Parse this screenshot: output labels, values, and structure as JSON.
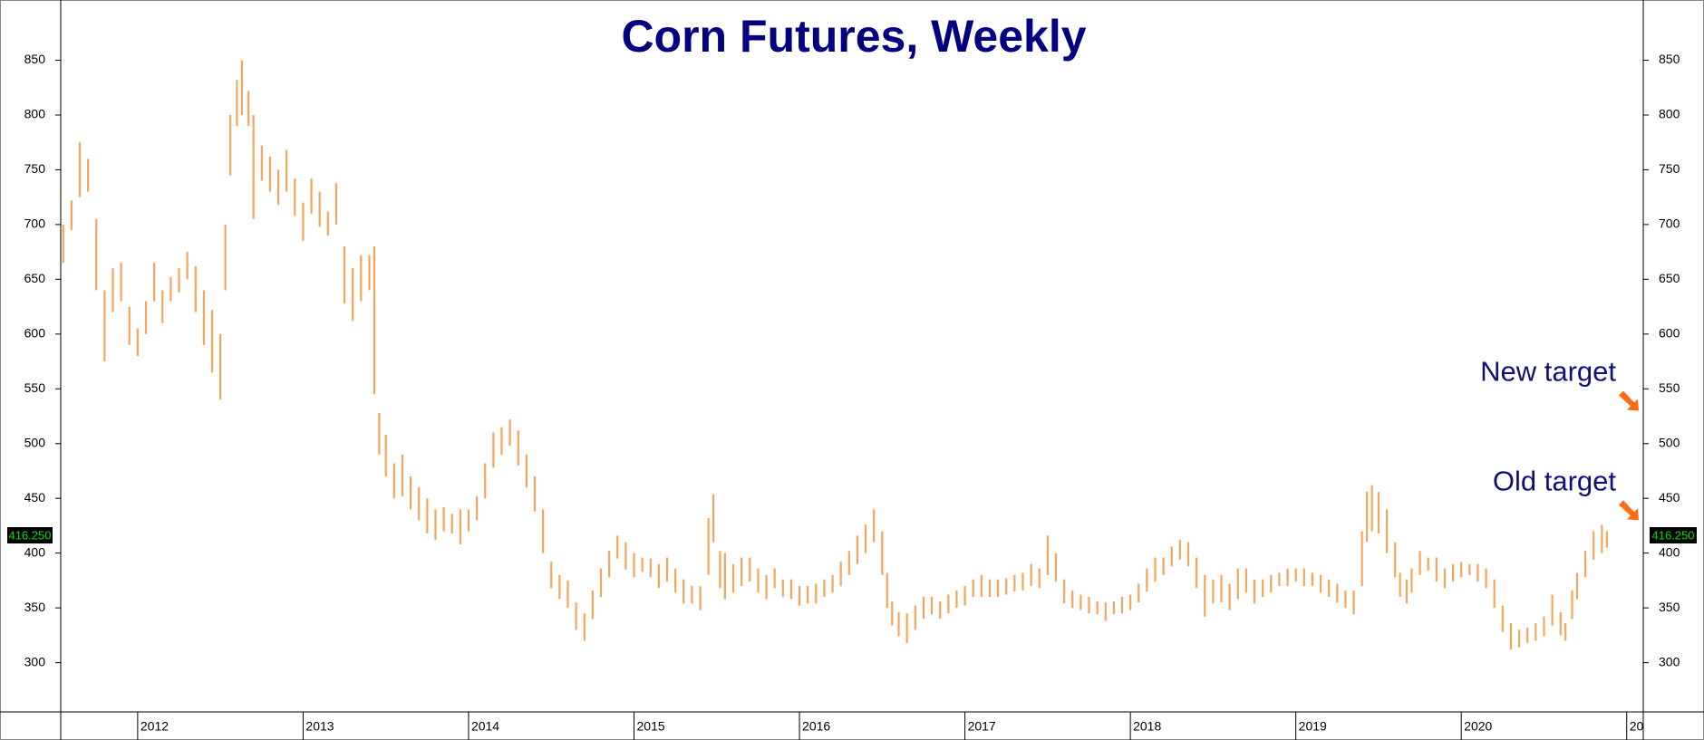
{
  "chart_data": {
    "type": "range-bar",
    "title": "Corn Futures, Weekly",
    "color": "#f5a55a",
    "xlim": [
      2011.535,
      2021.1
    ],
    "ylim": [
      255,
      905
    ],
    "xticks": [
      2012,
      2013,
      2014,
      2015,
      2016,
      2017,
      2018,
      2019,
      2020,
      {
        "value": 2021,
        "label": "20"
      }
    ],
    "yticks": [
      300,
      350,
      400,
      450,
      500,
      550,
      600,
      650,
      700,
      750,
      800,
      850
    ],
    "last_price": {
      "value": 416.25,
      "label": "416.250"
    },
    "annotations": [
      {
        "text": "New target",
        "value": 530
      },
      {
        "text": "Old target",
        "value": 430
      }
    ],
    "bars": [
      [
        2011.55,
        665,
        700
      ],
      [
        2011.6,
        695,
        722
      ],
      [
        2011.65,
        725,
        775
      ],
      [
        2011.7,
        730,
        760
      ],
      [
        2011.75,
        640,
        705
      ],
      [
        2011.8,
        575,
        640
      ],
      [
        2011.85,
        620,
        660
      ],
      [
        2011.9,
        630,
        665
      ],
      [
        2011.95,
        590,
        625
      ],
      [
        2012.0,
        580,
        605
      ],
      [
        2012.05,
        600,
        630
      ],
      [
        2012.1,
        630,
        665
      ],
      [
        2012.15,
        610,
        640
      ],
      [
        2012.2,
        630,
        652
      ],
      [
        2012.25,
        638,
        660
      ],
      [
        2012.3,
        650,
        675
      ],
      [
        2012.35,
        620,
        662
      ],
      [
        2012.4,
        590,
        640
      ],
      [
        2012.45,
        565,
        622
      ],
      [
        2012.5,
        540,
        600
      ],
      [
        2012.53,
        640,
        700
      ],
      [
        2012.56,
        745,
        800
      ],
      [
        2012.6,
        790,
        832
      ],
      [
        2012.63,
        800,
        850
      ],
      [
        2012.67,
        790,
        822
      ],
      [
        2012.7,
        705,
        800
      ],
      [
        2012.75,
        740,
        772
      ],
      [
        2012.8,
        730,
        762
      ],
      [
        2012.85,
        718,
        750
      ],
      [
        2012.9,
        730,
        768
      ],
      [
        2012.95,
        708,
        742
      ],
      [
        2013.0,
        685,
        720
      ],
      [
        2013.05,
        710,
        742
      ],
      [
        2013.1,
        698,
        730
      ],
      [
        2013.15,
        690,
        712
      ],
      [
        2013.2,
        700,
        738
      ],
      [
        2013.25,
        628,
        680
      ],
      [
        2013.3,
        612,
        660
      ],
      [
        2013.35,
        630,
        672
      ],
      [
        2013.4,
        640,
        672
      ],
      [
        2013.43,
        545,
        680
      ],
      [
        2013.46,
        490,
        528
      ],
      [
        2013.5,
        470,
        508
      ],
      [
        2013.55,
        450,
        482
      ],
      [
        2013.6,
        452,
        490
      ],
      [
        2013.65,
        440,
        470
      ],
      [
        2013.7,
        430,
        460
      ],
      [
        2013.75,
        418,
        450
      ],
      [
        2013.8,
        412,
        440
      ],
      [
        2013.85,
        420,
        442
      ],
      [
        2013.9,
        418,
        436
      ],
      [
        2013.95,
        408,
        440
      ],
      [
        2014.0,
        420,
        440
      ],
      [
        2014.05,
        430,
        452
      ],
      [
        2014.1,
        450,
        482
      ],
      [
        2014.15,
        478,
        510
      ],
      [
        2014.2,
        490,
        515
      ],
      [
        2014.25,
        498,
        522
      ],
      [
        2014.3,
        480,
        512
      ],
      [
        2014.35,
        460,
        490
      ],
      [
        2014.4,
        438,
        470
      ],
      [
        2014.45,
        400,
        440
      ],
      [
        2014.5,
        368,
        392
      ],
      [
        2014.55,
        358,
        380
      ],
      [
        2014.6,
        350,
        375
      ],
      [
        2014.65,
        330,
        355
      ],
      [
        2014.7,
        320,
        345
      ],
      [
        2014.75,
        340,
        366
      ],
      [
        2014.8,
        360,
        386
      ],
      [
        2014.85,
        378,
        402
      ],
      [
        2014.9,
        395,
        416
      ],
      [
        2014.95,
        385,
        410
      ],
      [
        2015.0,
        378,
        400
      ],
      [
        2015.05,
        383,
        396
      ],
      [
        2015.1,
        378,
        395
      ],
      [
        2015.15,
        368,
        390
      ],
      [
        2015.2,
        374,
        396
      ],
      [
        2015.25,
        364,
        386
      ],
      [
        2015.3,
        354,
        376
      ],
      [
        2015.35,
        354,
        370
      ],
      [
        2015.4,
        348,
        370
      ],
      [
        2015.45,
        380,
        432
      ],
      [
        2015.48,
        410,
        454
      ],
      [
        2015.52,
        368,
        402
      ],
      [
        2015.55,
        358,
        400
      ],
      [
        2015.6,
        364,
        390
      ],
      [
        2015.65,
        370,
        396
      ],
      [
        2015.7,
        374,
        396
      ],
      [
        2015.75,
        364,
        386
      ],
      [
        2015.8,
        358,
        380
      ],
      [
        2015.85,
        368,
        386
      ],
      [
        2015.9,
        360,
        376
      ],
      [
        2015.95,
        358,
        376
      ],
      [
        2016.0,
        352,
        370
      ],
      [
        2016.05,
        354,
        370
      ],
      [
        2016.1,
        354,
        372
      ],
      [
        2016.15,
        360,
        376
      ],
      [
        2016.2,
        364,
        380
      ],
      [
        2016.25,
        370,
        392
      ],
      [
        2016.3,
        380,
        402
      ],
      [
        2016.35,
        390,
        416
      ],
      [
        2016.4,
        400,
        426
      ],
      [
        2016.45,
        410,
        440
      ],
      [
        2016.5,
        380,
        420
      ],
      [
        2016.53,
        350,
        382
      ],
      [
        2016.56,
        334,
        356
      ],
      [
        2016.6,
        324,
        346
      ],
      [
        2016.65,
        318,
        345
      ],
      [
        2016.7,
        330,
        352
      ],
      [
        2016.75,
        340,
        360
      ],
      [
        2016.8,
        344,
        360
      ],
      [
        2016.85,
        340,
        356
      ],
      [
        2016.9,
        345,
        362
      ],
      [
        2016.95,
        350,
        366
      ],
      [
        2017.0,
        352,
        370
      ],
      [
        2017.05,
        360,
        376
      ],
      [
        2017.1,
        360,
        380
      ],
      [
        2017.15,
        360,
        376
      ],
      [
        2017.2,
        360,
        376
      ],
      [
        2017.25,
        362,
        377
      ],
      [
        2017.3,
        365,
        380
      ],
      [
        2017.35,
        366,
        382
      ],
      [
        2017.4,
        370,
        390
      ],
      [
        2017.45,
        368,
        386
      ],
      [
        2017.5,
        380,
        416
      ],
      [
        2017.55,
        374,
        400
      ],
      [
        2017.6,
        354,
        376
      ],
      [
        2017.65,
        350,
        366
      ],
      [
        2017.7,
        348,
        362
      ],
      [
        2017.75,
        345,
        360
      ],
      [
        2017.8,
        344,
        356
      ],
      [
        2017.85,
        338,
        355
      ],
      [
        2017.9,
        344,
        356
      ],
      [
        2017.95,
        345,
        360
      ],
      [
        2018.0,
        348,
        362
      ],
      [
        2018.05,
        355,
        372
      ],
      [
        2018.1,
        365,
        386
      ],
      [
        2018.15,
        374,
        396
      ],
      [
        2018.2,
        380,
        396
      ],
      [
        2018.25,
        388,
        406
      ],
      [
        2018.3,
        394,
        412
      ],
      [
        2018.35,
        388,
        410
      ],
      [
        2018.4,
        368,
        396
      ],
      [
        2018.45,
        342,
        380
      ],
      [
        2018.5,
        354,
        376
      ],
      [
        2018.55,
        355,
        380
      ],
      [
        2018.6,
        348,
        372
      ],
      [
        2018.65,
        358,
        386
      ],
      [
        2018.7,
        364,
        386
      ],
      [
        2018.75,
        354,
        376
      ],
      [
        2018.8,
        360,
        376
      ],
      [
        2018.85,
        364,
        380
      ],
      [
        2018.9,
        370,
        382
      ],
      [
        2018.95,
        370,
        386
      ],
      [
        2019.0,
        374,
        386
      ],
      [
        2019.05,
        370,
        386
      ],
      [
        2019.1,
        370,
        382
      ],
      [
        2019.15,
        364,
        380
      ],
      [
        2019.2,
        360,
        376
      ],
      [
        2019.25,
        355,
        372
      ],
      [
        2019.3,
        350,
        366
      ],
      [
        2019.35,
        344,
        366
      ],
      [
        2019.4,
        370,
        420
      ],
      [
        2019.43,
        410,
        456
      ],
      [
        2019.46,
        420,
        462
      ],
      [
        2019.5,
        418,
        456
      ],
      [
        2019.55,
        400,
        440
      ],
      [
        2019.6,
        378,
        410
      ],
      [
        2019.63,
        360,
        382
      ],
      [
        2019.67,
        354,
        376
      ],
      [
        2019.7,
        364,
        386
      ],
      [
        2019.75,
        380,
        402
      ],
      [
        2019.8,
        384,
        396
      ],
      [
        2019.85,
        374,
        396
      ],
      [
        2019.9,
        368,
        386
      ],
      [
        2019.95,
        374,
        390
      ],
      [
        2020.0,
        378,
        392
      ],
      [
        2020.05,
        380,
        390
      ],
      [
        2020.1,
        374,
        390
      ],
      [
        2020.15,
        368,
        386
      ],
      [
        2020.2,
        350,
        376
      ],
      [
        2020.25,
        328,
        352
      ],
      [
        2020.3,
        312,
        336
      ],
      [
        2020.35,
        314,
        330
      ],
      [
        2020.4,
        318,
        332
      ],
      [
        2020.45,
        320,
        336
      ],
      [
        2020.5,
        324,
        342
      ],
      [
        2020.55,
        334,
        362
      ],
      [
        2020.6,
        325,
        346
      ],
      [
        2020.63,
        320,
        336
      ],
      [
        2020.67,
        340,
        366
      ],
      [
        2020.7,
        358,
        382
      ],
      [
        2020.75,
        378,
        402
      ],
      [
        2020.8,
        394,
        420
      ],
      [
        2020.85,
        400,
        426
      ],
      [
        2020.88,
        405,
        420
      ]
    ]
  }
}
